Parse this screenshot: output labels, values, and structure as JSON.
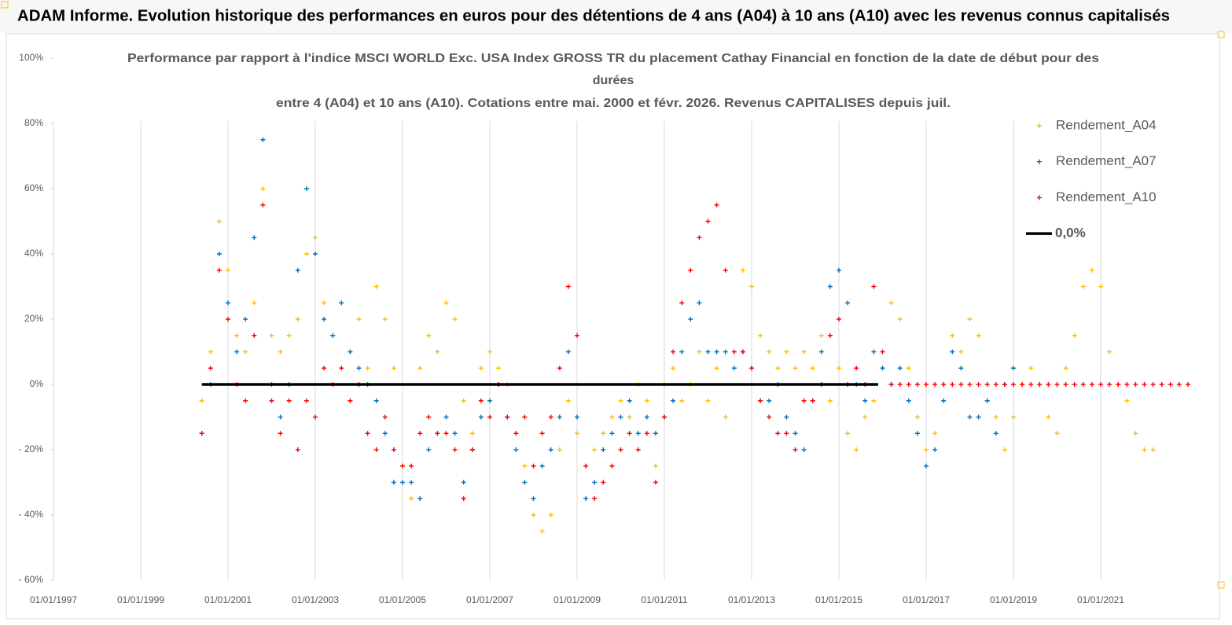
{
  "header": {
    "title": "ADAM Informe. Evolution historique des performances en euros pour des détentions de 4 ans (A04) à 10 ans (A10) avec les revenus connus capitalisés"
  },
  "chart_data": {
    "type": "scatter",
    "title": [
      "Performance par rapport à l'indice MSCI WORLD Exc. USA Index GROSS TR  du placement Cathay Financial  en fonction de la date de début pour des",
      "durées",
      "entre 4 (A04) et 10 ans (A10). Cotations entre mai. 2000 et févr. 2026. Revenus CAPITALISES depuis juil."
    ],
    "xlim": [
      1997,
      2023
    ],
    "xticks": [
      {
        "value": 1997,
        "label": "01/01/1997"
      },
      {
        "value": 1999,
        "label": "01/01/1999"
      },
      {
        "value": 2001,
        "label": "01/01/2001"
      },
      {
        "value": 2003,
        "label": "01/01/2003"
      },
      {
        "value": 2005,
        "label": "01/01/2005"
      },
      {
        "value": 2007,
        "label": "01/01/2007"
      },
      {
        "value": 2009,
        "label": "01/01/2009"
      },
      {
        "value": 2011,
        "label": "01/01/2011"
      },
      {
        "value": 2013,
        "label": "01/01/2013"
      },
      {
        "value": 2015,
        "label": "01/01/2015"
      },
      {
        "value": 2017,
        "label": "01/01/2017"
      },
      {
        "value": 2019,
        "label": "01/01/2019"
      },
      {
        "value": 2021,
        "label": "01/01/2021"
      }
    ],
    "ylim": [
      -60,
      100
    ],
    "yticks": [
      {
        "value": -60,
        "label": "- 60%"
      },
      {
        "value": -40,
        "label": "- 40%"
      },
      {
        "value": -20,
        "label": "- 20%"
      },
      {
        "value": 0,
        "label": "0%"
      },
      {
        "value": 20,
        "label": "20%"
      },
      {
        "value": 40,
        "label": "40%"
      },
      {
        "value": 60,
        "label": "60%"
      },
      {
        "value": 80,
        "label": "80%"
      },
      {
        "value": 100,
        "label": "100%"
      }
    ],
    "grid": "x",
    "legend": "right",
    "series": [
      {
        "name": "Rendement_A04",
        "color": "#ffc000",
        "mark": "cross",
        "x": [
          2000.4,
          2000.6,
          2000.8,
          2001,
          2001.2,
          2001.4,
          2001.6,
          2001.8,
          2002,
          2002.2,
          2002.4,
          2002.6,
          2002.8,
          2003,
          2003.2,
          2003.4,
          2003.6,
          2003.8,
          2004,
          2004.2,
          2004.4,
          2004.6,
          2004.8,
          2005,
          2005.2,
          2005.4,
          2005.6,
          2005.8,
          2006,
          2006.2,
          2006.4,
          2006.6,
          2006.8,
          2007,
          2007.2,
          2007.4,
          2007.6,
          2007.8,
          2008,
          2008.2,
          2008.4,
          2008.6,
          2008.8,
          2009,
          2009.2,
          2009.4,
          2009.6,
          2009.8,
          2010,
          2010.2,
          2010.4,
          2010.6,
          2010.8,
          2011,
          2011.2,
          2011.4,
          2011.6,
          2011.8,
          2012,
          2012.2,
          2012.4,
          2012.6,
          2012.8,
          2013,
          2013.2,
          2013.4,
          2013.6,
          2013.8,
          2014,
          2014.2,
          2014.4,
          2014.6,
          2014.8,
          2015,
          2015.2,
          2015.4,
          2015.6,
          2015.8,
          2016,
          2016.2,
          2016.4,
          2016.6,
          2016.8,
          2017,
          2017.2,
          2017.4,
          2017.6,
          2017.8,
          2018,
          2018.2,
          2018.4,
          2018.6,
          2018.8,
          2019,
          2019.2,
          2019.4,
          2019.6,
          2019.8,
          2020,
          2020.2,
          2020.4,
          2020.6,
          2020.8,
          2021,
          2021.2,
          2021.4,
          2021.6,
          2021.8,
          2022,
          2022.2
        ],
        "values": [
          -5,
          10,
          50,
          35,
          15,
          10,
          25,
          60,
          15,
          10,
          15,
          20,
          40,
          45,
          25,
          15,
          25,
          10,
          20,
          5,
          30,
          20,
          5,
          -25,
          -35,
          5,
          15,
          10,
          25,
          20,
          -5,
          -15,
          5,
          10,
          5,
          0,
          -15,
          -25,
          -40,
          -45,
          -40,
          -20,
          -5,
          -15,
          -25,
          -20,
          -15,
          -10,
          -5,
          -10,
          0,
          -5,
          -25,
          0,
          5,
          -5,
          0,
          10,
          -5,
          5,
          -10,
          5,
          35,
          30,
          15,
          10,
          5,
          10,
          5,
          10,
          5,
          15,
          -5,
          5,
          -15,
          -20,
          -10,
          -5,
          5,
          25,
          20,
          5,
          -10,
          -20,
          -15,
          0,
          15,
          10,
          20,
          15,
          -5,
          -10,
          -20,
          -10,
          0,
          5,
          0,
          -10,
          -15,
          5,
          15,
          30,
          35,
          30,
          10,
          0,
          -5,
          -15,
          -20,
          -20
        ]
      },
      {
        "name": "Rendement_A07",
        "color": "#0070c0",
        "mark": "cross",
        "x": [
          2000.4,
          2000.6,
          2000.8,
          2001,
          2001.2,
          2001.4,
          2001.6,
          2001.8,
          2002,
          2002.2,
          2002.4,
          2002.6,
          2002.8,
          2003,
          2003.2,
          2003.4,
          2003.6,
          2003.8,
          2004,
          2004.2,
          2004.4,
          2004.6,
          2004.8,
          2005,
          2005.2,
          2005.4,
          2005.6,
          2005.8,
          2006,
          2006.2,
          2006.4,
          2006.6,
          2006.8,
          2007,
          2007.2,
          2007.4,
          2007.6,
          2007.8,
          2008,
          2008.2,
          2008.4,
          2008.6,
          2008.8,
          2009,
          2009.2,
          2009.4,
          2009.6,
          2009.8,
          2010,
          2010.2,
          2010.4,
          2010.6,
          2010.8,
          2011,
          2011.2,
          2011.4,
          2011.6,
          2011.8,
          2012,
          2012.2,
          2012.4,
          2012.6,
          2012.8,
          2013,
          2013.2,
          2013.4,
          2013.6,
          2013.8,
          2014,
          2014.2,
          2014.4,
          2014.6,
          2014.8,
          2015,
          2015.2,
          2015.4,
          2015.6,
          2015.8,
          2016,
          2016.2,
          2016.4,
          2016.6,
          2016.8,
          2017,
          2017.2,
          2017.4,
          2017.6,
          2017.8,
          2018,
          2018.2,
          2018.4,
          2018.6,
          2018.8,
          2019
        ],
        "values": [
          -15,
          0,
          40,
          25,
          10,
          20,
          45,
          75,
          0,
          -10,
          0,
          35,
          60,
          40,
          20,
          15,
          25,
          10,
          5,
          0,
          -5,
          -15,
          -30,
          -30,
          -30,
          -35,
          -20,
          -15,
          -10,
          -15,
          -30,
          -20,
          -10,
          -5,
          0,
          -10,
          -20,
          -30,
          -35,
          -25,
          -20,
          -10,
          10,
          -10,
          -35,
          -30,
          -20,
          -15,
          -10,
          -5,
          -15,
          -10,
          -15,
          -10,
          -5,
          10,
          20,
          25,
          10,
          10,
          10,
          5,
          10,
          5,
          -5,
          -5,
          0,
          -10,
          -15,
          -20,
          -5,
          10,
          30,
          35,
          25,
          0,
          -5,
          10,
          5,
          0,
          5,
          -5,
          -15,
          -25,
          -20,
          -5,
          10,
          5,
          -10,
          -10,
          -5,
          -15,
          0,
          5
        ]
      },
      {
        "name": "Rendement_A10",
        "color": "#ff0000",
        "mark": "cross",
        "x": [
          2000.4,
          2000.6,
          2000.8,
          2001,
          2001.2,
          2001.4,
          2001.6,
          2001.8,
          2002,
          2002.2,
          2002.4,
          2002.6,
          2002.8,
          2003,
          2003.2,
          2003.4,
          2003.6,
          2003.8,
          2004,
          2004.2,
          2004.4,
          2004.6,
          2004.8,
          2005,
          2005.2,
          2005.4,
          2005.6,
          2005.8,
          2006,
          2006.2,
          2006.4,
          2006.6,
          2006.8,
          2007,
          2007.2,
          2007.4,
          2007.6,
          2007.8,
          2008,
          2008.2,
          2008.4,
          2008.6,
          2008.8,
          2009,
          2009.2,
          2009.4,
          2009.6,
          2009.8,
          2010,
          2010.2,
          2010.4,
          2010.6,
          2010.8,
          2011,
          2011.2,
          2011.4,
          2011.6,
          2011.8,
          2012,
          2012.2,
          2012.4,
          2012.6,
          2012.8,
          2013,
          2013.2,
          2013.4,
          2013.6,
          2013.8,
          2014,
          2014.2,
          2014.4,
          2014.6,
          2014.8,
          2015,
          2015.2,
          2015.4,
          2015.6,
          2015.8,
          2016,
          2016.2,
          2016.4,
          2016.6,
          2016.8,
          2017,
          2017.2,
          2017.4,
          2017.6,
          2017.8,
          2018,
          2018.2,
          2018.4,
          2018.6,
          2018.8,
          2019,
          2019.2,
          2019.4,
          2019.6,
          2019.8,
          2020,
          2020.2,
          2020.4,
          2020.6,
          2020.8,
          2021,
          2021.2,
          2021.4,
          2021.6,
          2021.8,
          2022,
          2022.2,
          2022.4,
          2022.6,
          2022.8,
          2023
        ],
        "values": [
          -15,
          5,
          35,
          20,
          0,
          -5,
          15,
          55,
          -5,
          -15,
          -5,
          -20,
          -5,
          -10,
          5,
          0,
          5,
          -5,
          0,
          -15,
          -20,
          -10,
          -20,
          -25,
          -25,
          -15,
          -10,
          -15,
          -15,
          -20,
          -35,
          -20,
          -5,
          -10,
          0,
          -10,
          -15,
          -10,
          -25,
          -15,
          -10,
          5,
          30,
          15,
          -25,
          -35,
          -30,
          -25,
          -20,
          -15,
          -20,
          -15,
          -30,
          -10,
          10,
          25,
          35,
          45,
          50,
          55,
          35,
          10,
          10,
          5,
          -5,
          -10,
          -15,
          -15,
          -20,
          -5,
          -5,
          0,
          15,
          20,
          0,
          5,
          0,
          30,
          10,
          0,
          0,
          0,
          0,
          0,
          0,
          0,
          0,
          0,
          0,
          0,
          0,
          0,
          0,
          0,
          0,
          0,
          0,
          0,
          0,
          0,
          0,
          0,
          0,
          0,
          0,
          0,
          0,
          0,
          0,
          0,
          0,
          0,
          0,
          0
        ]
      },
      {
        "name": "0,0%",
        "color": "#000000",
        "mark": "line",
        "x": [
          2000.4,
          2015.9
        ],
        "values": [
          0,
          0
        ]
      }
    ]
  }
}
